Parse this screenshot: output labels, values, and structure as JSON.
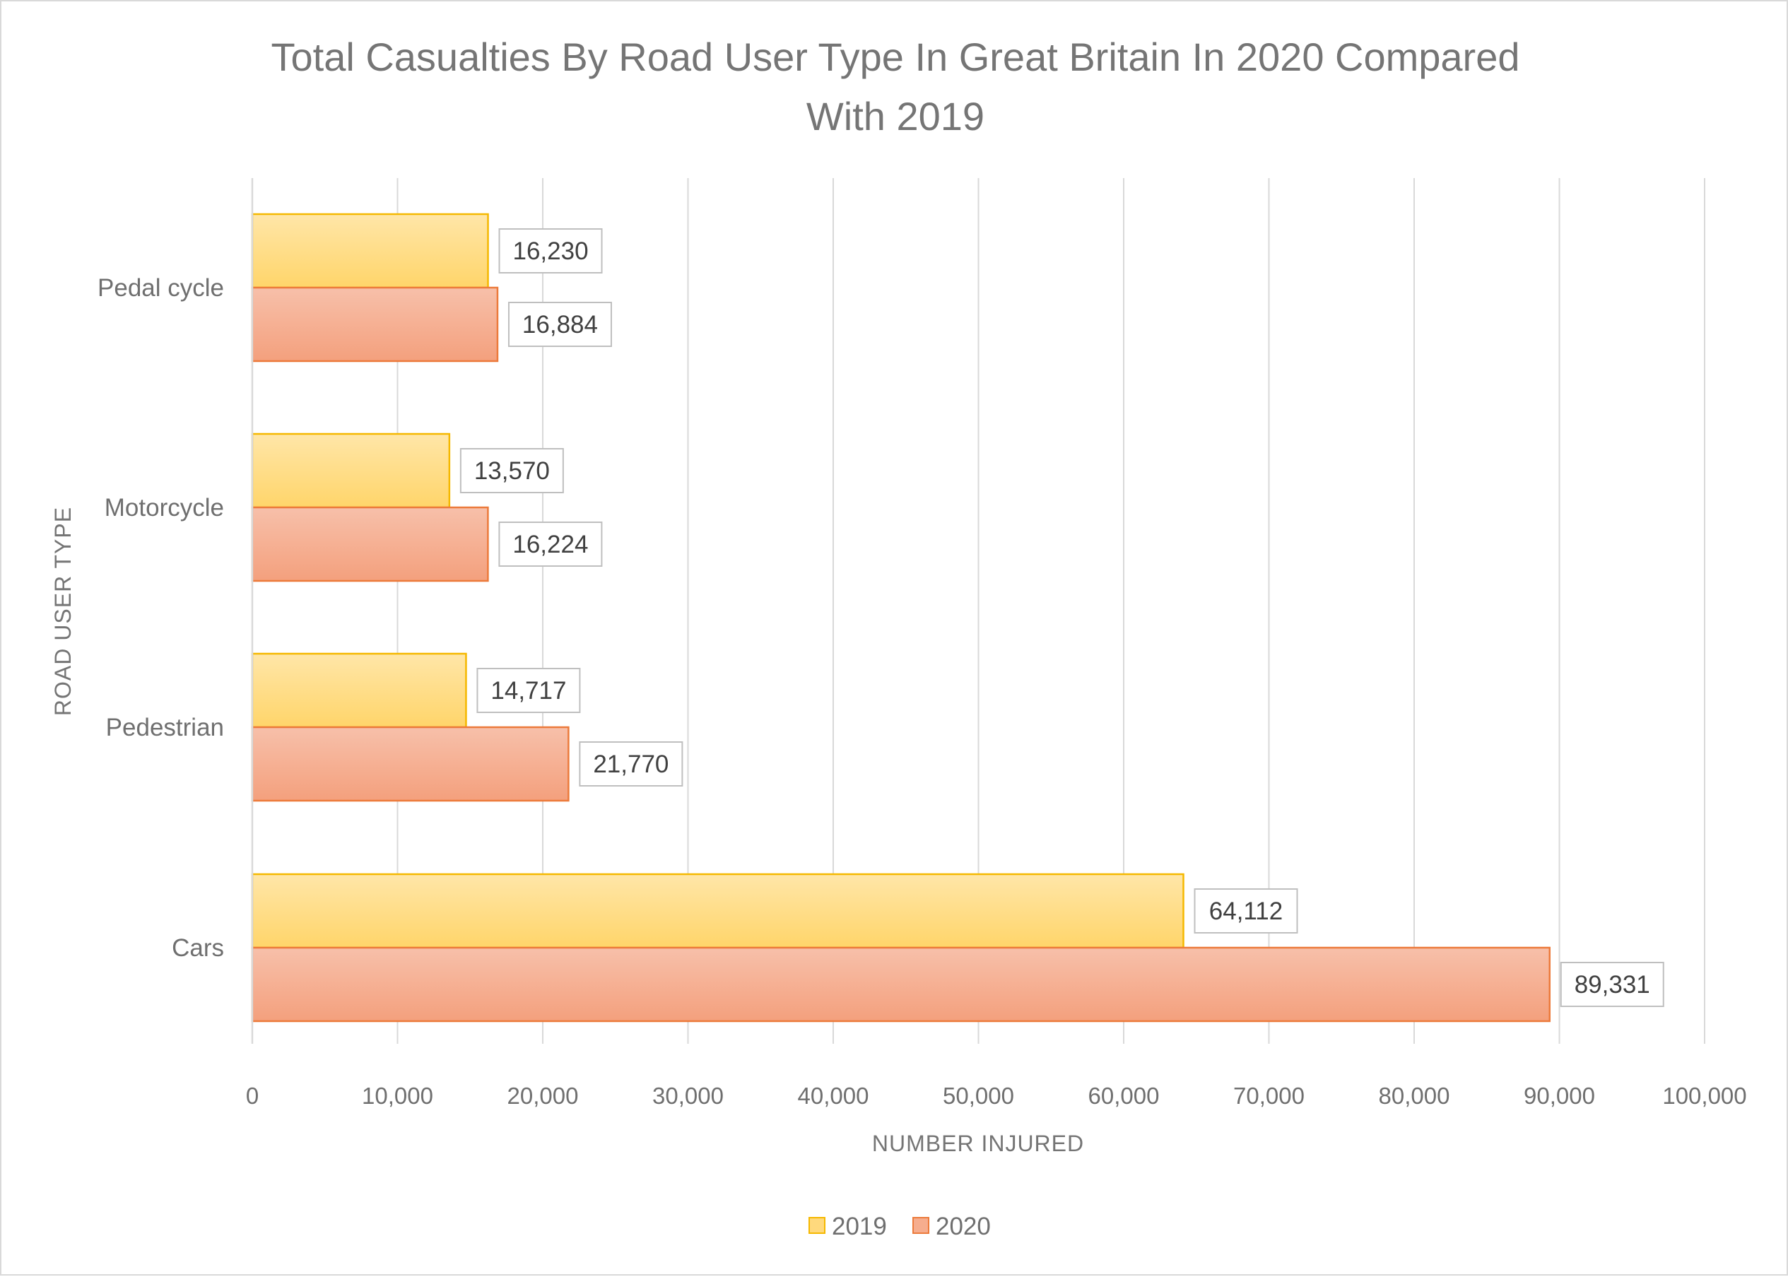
{
  "chart_data": {
    "type": "bar",
    "orientation": "horizontal",
    "title_lines": [
      "Total Casualties By Road User Type In Great Britain In 2020 Compared",
      "With 2019"
    ],
    "xlabel": "NUMBER INJURED",
    "ylabel": "ROAD USER TYPE",
    "categories": [
      "Pedal cycle",
      "Motorcycle",
      "Pedestrian",
      "Cars"
    ],
    "series": [
      {
        "name": "2019",
        "values": [
          16230,
          13570,
          14717,
          64112
        ],
        "labels": [
          "16,230",
          "13,570",
          "14,717",
          "64,112"
        ],
        "fill": "#ffd97d",
        "stroke": "#f5b800"
      },
      {
        "name": "2020",
        "values": [
          16884,
          16224,
          21770,
          89331
        ],
        "labels": [
          "16,884",
          "16,224",
          "21,770",
          "89,331"
        ],
        "fill": "#f6ad8e",
        "stroke": "#ec7a3b"
      }
    ],
    "xlim": [
      0,
      100000
    ],
    "xticks": [
      0,
      10000,
      20000,
      30000,
      40000,
      50000,
      60000,
      70000,
      80000,
      90000,
      100000
    ],
    "xtick_labels": [
      "0",
      "10,000",
      "20,000",
      "30,000",
      "40,000",
      "50,000",
      "60,000",
      "70,000",
      "80,000",
      "90,000",
      "100,000"
    ],
    "grid": true,
    "legend_position": "bottom",
    "colors": {
      "grid": "#d9d9d9",
      "text": "#6f6f6f",
      "label_border": "#bfbfbf"
    }
  }
}
